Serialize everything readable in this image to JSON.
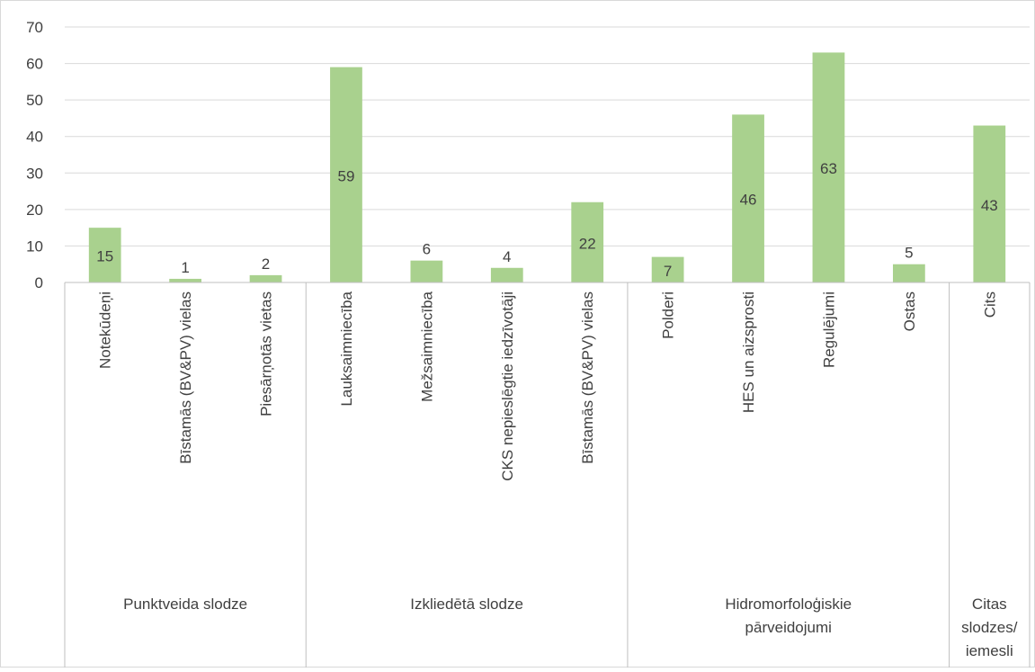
{
  "chart_data": {
    "type": "bar",
    "title": "",
    "xlabel": "",
    "ylabel": "",
    "ylim": [
      0,
      70
    ],
    "yticks": [
      0,
      10,
      20,
      30,
      40,
      50,
      60,
      70
    ],
    "grid": true,
    "bar_color": "#a9d18e",
    "gridline_color": "#d9d9d9",
    "text_color": "#404040",
    "categories": [
      "Notekūdeņi",
      "Bīstamās (BV&PV)  vielas",
      "Piesārņotās vietas",
      "Lauksaimniecība",
      "Mežsaimniecība",
      "CKS nepieslēgtie iedzīvotāji",
      "Bīstamās (BV&PV)  vielas",
      "Polderi",
      "HES un aizsprosti",
      "Regulējumi",
      "Ostas",
      "Cits"
    ],
    "values": [
      15,
      1,
      2,
      59,
      6,
      4,
      22,
      7,
      46,
      63,
      5,
      43
    ],
    "groups": [
      {
        "name": "Punktveida slodze",
        "lines": [
          "Punktveida slodze"
        ],
        "count": 3
      },
      {
        "name": "Izkliedētā slodze",
        "lines": [
          "Izkliedētā slodze"
        ],
        "count": 4
      },
      {
        "name": "Hidromorfoloģiskie pārveidojumi",
        "lines": [
          "Hidromorfoloģiskie",
          "pārveidojumi"
        ],
        "count": 4
      },
      {
        "name": "Citas slodzes/ iemesli",
        "lines": [
          "Citas",
          "slodzes/",
          "iemesli"
        ],
        "count": 1
      }
    ]
  }
}
